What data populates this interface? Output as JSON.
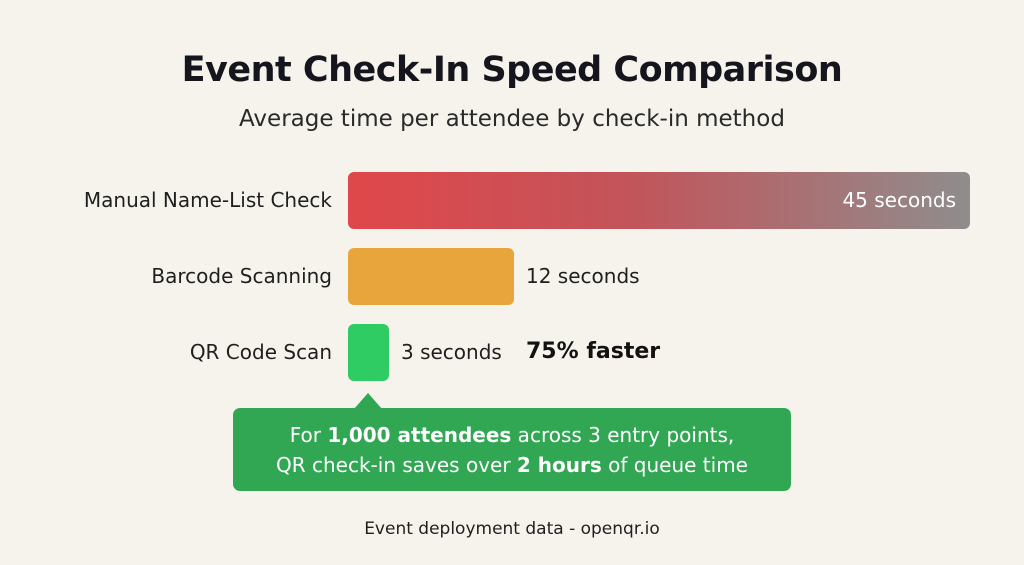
{
  "chart_data": {
    "type": "bar",
    "orientation": "horizontal",
    "title": "Event Check-In Speed Comparison",
    "subtitle": "Average time per attendee by check-in method",
    "categories": [
      "Manual Name-List Check",
      "Barcode Scanning",
      "QR Code Scan"
    ],
    "values": [
      45,
      12,
      3
    ],
    "unit": "seconds",
    "value_labels": [
      "45 seconds",
      "12 seconds",
      "3 seconds"
    ],
    "colors": [
      "#e0474a",
      "#e8a53c",
      "#2ecc63"
    ],
    "annotation": "75% faster",
    "callout": {
      "pre_1": "For ",
      "bold_1": "1,000 attendees",
      "post_1": " across 3 entry points,",
      "pre_2": "QR check-in saves over ",
      "bold_2": "2 hours",
      "post_2": " of queue time"
    },
    "source": "Event deployment data - openqr.io"
  }
}
